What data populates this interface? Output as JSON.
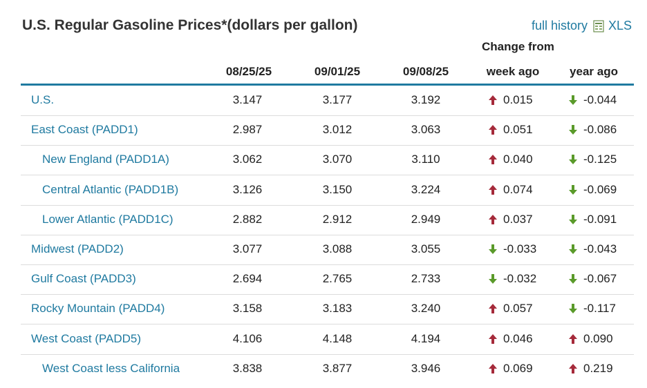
{
  "title": "U.S. Regular Gasoline Prices*(dollars per gallon)",
  "links": {
    "full_history": "full history",
    "xls": "XLS"
  },
  "columns": {
    "dates": [
      "08/25/25",
      "09/01/25",
      "09/08/25"
    ],
    "change_from": "Change from",
    "week_ago": "week ago",
    "year_ago": "year ago"
  },
  "colors": {
    "up": "#a52a3a",
    "down": "#5a9a2a",
    "link": "#1f7aa0",
    "rule": "#1f7aa0"
  },
  "rows": [
    {
      "name": "U.S.",
      "indent": false,
      "v1": "3.147",
      "v2": "3.177",
      "v3": "3.192",
      "week": "0.015",
      "week_dir": "up",
      "year": "-0.044",
      "year_dir": "down"
    },
    {
      "name": "East Coast (PADD1)",
      "indent": false,
      "v1": "2.987",
      "v2": "3.012",
      "v3": "3.063",
      "week": "0.051",
      "week_dir": "up",
      "year": "-0.086",
      "year_dir": "down"
    },
    {
      "name": "New England (PADD1A)",
      "indent": true,
      "v1": "3.062",
      "v2": "3.070",
      "v3": "3.110",
      "week": "0.040",
      "week_dir": "up",
      "year": "-0.125",
      "year_dir": "down"
    },
    {
      "name": "Central Atlantic (PADD1B)",
      "indent": true,
      "v1": "3.126",
      "v2": "3.150",
      "v3": "3.224",
      "week": "0.074",
      "week_dir": "up",
      "year": "-0.069",
      "year_dir": "down"
    },
    {
      "name": "Lower Atlantic (PADD1C)",
      "indent": true,
      "v1": "2.882",
      "v2": "2.912",
      "v3": "2.949",
      "week": "0.037",
      "week_dir": "up",
      "year": "-0.091",
      "year_dir": "down"
    },
    {
      "name": "Midwest (PADD2)",
      "indent": false,
      "v1": "3.077",
      "v2": "3.088",
      "v3": "3.055",
      "week": "-0.033",
      "week_dir": "down",
      "year": "-0.043",
      "year_dir": "down"
    },
    {
      "name": "Gulf Coast (PADD3)",
      "indent": false,
      "v1": "2.694",
      "v2": "2.765",
      "v3": "2.733",
      "week": "-0.032",
      "week_dir": "down",
      "year": "-0.067",
      "year_dir": "down"
    },
    {
      "name": "Rocky Mountain (PADD4)",
      "indent": false,
      "v1": "3.158",
      "v2": "3.183",
      "v3": "3.240",
      "week": "0.057",
      "week_dir": "up",
      "year": "-0.117",
      "year_dir": "down"
    },
    {
      "name": "West Coast (PADD5)",
      "indent": false,
      "v1": "4.106",
      "v2": "4.148",
      "v3": "4.194",
      "week": "0.046",
      "week_dir": "up",
      "year": "0.090",
      "year_dir": "up"
    },
    {
      "name": "West Coast less California",
      "indent": true,
      "v1": "3.838",
      "v2": "3.877",
      "v3": "3.946",
      "week": "0.069",
      "week_dir": "up",
      "year": "0.219",
      "year_dir": "up"
    }
  ]
}
